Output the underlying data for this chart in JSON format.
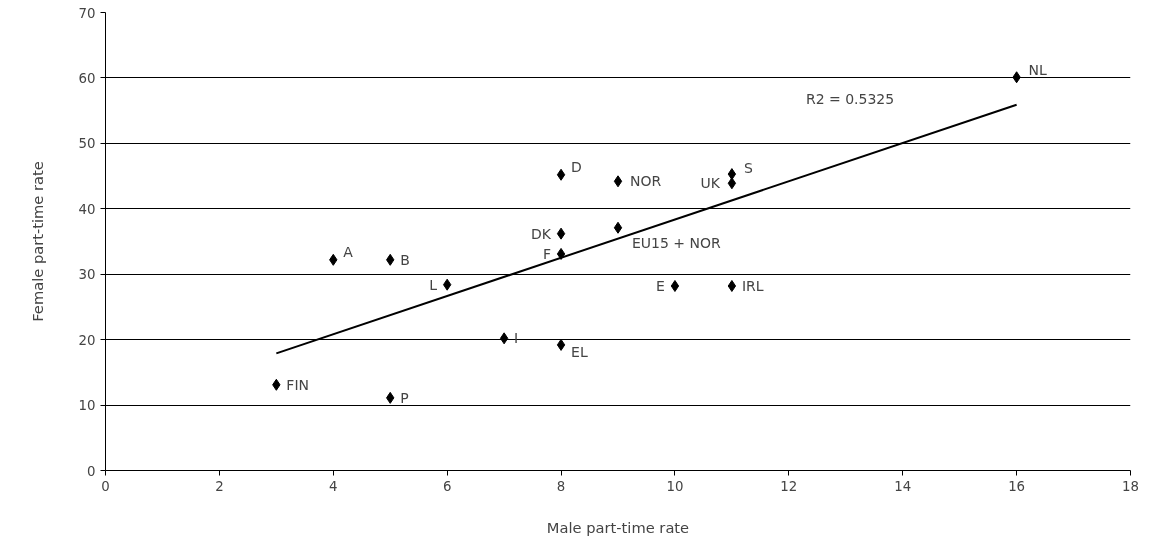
{
  "chart_data": {
    "type": "scatter",
    "xlabel": "Male part-time rate",
    "ylabel": "Female part-time rate",
    "xlim": [
      0,
      18
    ],
    "ylim": [
      0,
      70
    ],
    "xticks": [
      0,
      2,
      4,
      6,
      8,
      10,
      12,
      14,
      16,
      18
    ],
    "yticks": [
      0,
      10,
      20,
      30,
      40,
      50,
      60,
      70
    ],
    "grid": "y",
    "marker": "diamond",
    "series": [
      {
        "color": "#000000",
        "x": [
          3,
          5,
          4,
          5,
          6,
          7,
          8,
          8,
          8,
          8,
          9,
          9,
          10,
          11,
          11,
          11,
          16
        ],
        "values": [
          13.1,
          11.1,
          32.2,
          32.2,
          28.4,
          20.2,
          19.2,
          45.2,
          36.2,
          33.1,
          44.2,
          37.1,
          28.2,
          45.3,
          43.9,
          28.2,
          60.1
        ]
      },
      {
        "type": "line",
        "color": "#000000",
        "x": [
          3,
          16
        ],
        "values": [
          17.9,
          55.9
        ],
        "marker": "none"
      }
    ],
    "annotations": [
      {
        "text": "FIN",
        "x": 3,
        "y": 13.1
      },
      {
        "text": "P",
        "x": 5,
        "y": 11.1
      },
      {
        "text": "A",
        "x": 4,
        "y": 32.2
      },
      {
        "text": "B",
        "x": 5,
        "y": 32.2
      },
      {
        "text": "L",
        "x": 6,
        "y": 28.4
      },
      {
        "text": "I",
        "x": 7,
        "y": 20.2
      },
      {
        "text": "EL",
        "x": 8,
        "y": 19.2
      },
      {
        "text": "D",
        "x": 8,
        "y": 45.2
      },
      {
        "text": "DK",
        "x": 8,
        "y": 36.2
      },
      {
        "text": "F",
        "x": 8,
        "y": 33.1
      },
      {
        "text": "NOR",
        "x": 9,
        "y": 44.2
      },
      {
        "text": "EU15 + NOR",
        "x": 9,
        "y": 37.1
      },
      {
        "text": "E",
        "x": 10,
        "y": 28.2
      },
      {
        "text": "S",
        "x": 11,
        "y": 45.3
      },
      {
        "text": "UK",
        "x": 11,
        "y": 43.9
      },
      {
        "text": "IRL",
        "x": 11,
        "y": 28.2
      },
      {
        "text": "NL",
        "x": 16,
        "y": 60.1
      },
      "R2 = 0.5325"
    ]
  }
}
